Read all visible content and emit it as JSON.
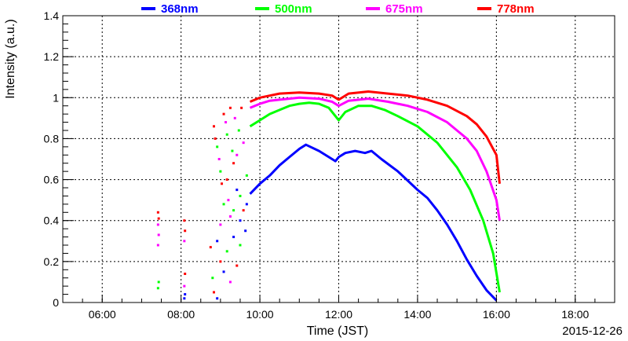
{
  "chart_data": {
    "type": "scatter",
    "xlabel": "Time (JST)",
    "ylabel": "Intensity (a.u.)",
    "date": "2015-12-26",
    "xlim": [
      "05:00",
      "19:00"
    ],
    "ylim": [
      0,
      1.4
    ],
    "grid": true,
    "legend_position": "top",
    "x_ticks": [
      "06:00",
      "08:00",
      "10:00",
      "12:00",
      "14:00",
      "16:00",
      "18:00"
    ],
    "y_ticks": [
      "0",
      "0.2",
      "0.4",
      "0.6",
      "0.8",
      "1",
      "1.2",
      "1.4"
    ],
    "series": [
      {
        "name": "368nm",
        "color": "#0000ff",
        "curve": [
          [
            "09:45",
            0.53
          ],
          [
            "10:00",
            0.58
          ],
          [
            "10:15",
            0.62
          ],
          [
            "10:30",
            0.67
          ],
          [
            "10:45",
            0.71
          ],
          [
            "11:00",
            0.75
          ],
          [
            "11:10",
            0.77
          ],
          [
            "11:30",
            0.74
          ],
          [
            "11:45",
            0.71
          ],
          [
            "11:55",
            0.69
          ],
          [
            "12:00",
            0.71
          ],
          [
            "12:10",
            0.73
          ],
          [
            "12:25",
            0.74
          ],
          [
            "12:40",
            0.73
          ],
          [
            "12:50",
            0.74
          ],
          [
            "13:05",
            0.7
          ],
          [
            "13:30",
            0.64
          ],
          [
            "14:00",
            0.55
          ],
          [
            "14:15",
            0.51
          ],
          [
            "14:30",
            0.45
          ],
          [
            "14:45",
            0.38
          ],
          [
            "15:00",
            0.3
          ],
          [
            "15:15",
            0.21
          ],
          [
            "15:30",
            0.13
          ],
          [
            "15:45",
            0.06
          ],
          [
            "16:00",
            0.01
          ]
        ]
      },
      {
        "name": "500nm",
        "color": "#00ff00",
        "curve": [
          [
            "09:45",
            0.86
          ],
          [
            "10:00",
            0.89
          ],
          [
            "10:15",
            0.92
          ],
          [
            "10:30",
            0.94
          ],
          [
            "10:45",
            0.96
          ],
          [
            "11:00",
            0.97
          ],
          [
            "11:15",
            0.975
          ],
          [
            "11:30",
            0.97
          ],
          [
            "11:45",
            0.95
          ],
          [
            "12:00",
            0.89
          ],
          [
            "12:10",
            0.93
          ],
          [
            "12:30",
            0.96
          ],
          [
            "12:50",
            0.96
          ],
          [
            "13:10",
            0.94
          ],
          [
            "13:30",
            0.91
          ],
          [
            "14:00",
            0.86
          ],
          [
            "14:30",
            0.78
          ],
          [
            "15:00",
            0.66
          ],
          [
            "15:20",
            0.55
          ],
          [
            "15:40",
            0.4
          ],
          [
            "15:55",
            0.24
          ],
          [
            "16:05",
            0.05
          ]
        ]
      },
      {
        "name": "675nm",
        "color": "#ff00ff",
        "curve": [
          [
            "09:45",
            0.95
          ],
          [
            "10:00",
            0.97
          ],
          [
            "10:15",
            0.985
          ],
          [
            "10:30",
            0.99
          ],
          [
            "11:00",
            1.0
          ],
          [
            "11:30",
            0.995
          ],
          [
            "11:50",
            0.98
          ],
          [
            "12:00",
            0.96
          ],
          [
            "12:15",
            0.985
          ],
          [
            "12:45",
            0.995
          ],
          [
            "13:15",
            0.98
          ],
          [
            "13:45",
            0.96
          ],
          [
            "14:15",
            0.93
          ],
          [
            "14:45",
            0.88
          ],
          [
            "15:15",
            0.8
          ],
          [
            "15:30",
            0.74
          ],
          [
            "15:45",
            0.64
          ],
          [
            "16:00",
            0.5
          ],
          [
            "16:05",
            0.4
          ]
        ]
      },
      {
        "name": "778nm",
        "color": "#ff0000",
        "curve": [
          [
            "09:45",
            0.98
          ],
          [
            "10:00",
            1.0
          ],
          [
            "10:15",
            1.01
          ],
          [
            "10:30",
            1.02
          ],
          [
            "11:00",
            1.025
          ],
          [
            "11:30",
            1.02
          ],
          [
            "11:50",
            1.01
          ],
          [
            "12:00",
            0.99
          ],
          [
            "12:15",
            1.02
          ],
          [
            "12:45",
            1.03
          ],
          [
            "13:15",
            1.02
          ],
          [
            "13:45",
            1.01
          ],
          [
            "14:15",
            0.99
          ],
          [
            "14:45",
            0.96
          ],
          [
            "15:15",
            0.91
          ],
          [
            "15:30",
            0.87
          ],
          [
            "15:45",
            0.81
          ],
          [
            "16:00",
            0.72
          ],
          [
            "16:05",
            0.58
          ]
        ]
      }
    ],
    "scattered_points": [
      [
        "07:25",
        0.44,
        "#ff0000"
      ],
      [
        "07:26",
        0.41,
        "#ff0000"
      ],
      [
        "07:25",
        0.38,
        "#ff00ff"
      ],
      [
        "07:26",
        0.33,
        "#ff00ff"
      ],
      [
        "07:25",
        0.28,
        "#ff00ff"
      ],
      [
        "07:26",
        0.1,
        "#00ff00"
      ],
      [
        "07:25",
        0.07,
        "#00ff00"
      ],
      [
        "08:05",
        0.4,
        "#ff0000"
      ],
      [
        "08:06",
        0.35,
        "#ff0000"
      ],
      [
        "08:05",
        0.3,
        "#ff00ff"
      ],
      [
        "08:06",
        0.14,
        "#ff0000"
      ],
      [
        "08:05",
        0.08,
        "#ff00ff"
      ],
      [
        "08:06",
        0.04,
        "#0000ff"
      ],
      [
        "08:05",
        0.02,
        "#0000ff"
      ],
      [
        "08:50",
        0.86,
        "#ff0000"
      ],
      [
        "08:52",
        0.8,
        "#ff0000"
      ],
      [
        "08:55",
        0.76,
        "#00ff00"
      ],
      [
        "08:58",
        0.7,
        "#ff00ff"
      ],
      [
        "09:00",
        0.64,
        "#00ff00"
      ],
      [
        "09:02",
        0.58,
        "#ff0000"
      ],
      [
        "09:05",
        0.92,
        "#ff0000"
      ],
      [
        "09:08",
        0.88,
        "#ff00ff"
      ],
      [
        "09:10",
        0.82,
        "#00ff00"
      ],
      [
        "09:12",
        0.5,
        "#ff00ff"
      ],
      [
        "09:15",
        0.95,
        "#ff0000"
      ],
      [
        "09:18",
        0.74,
        "#00ff00"
      ],
      [
        "09:20",
        0.45,
        "#00ff00"
      ],
      [
        "09:22",
        0.9,
        "#ff00ff"
      ],
      [
        "09:25",
        0.55,
        "#0000ff"
      ],
      [
        "09:28",
        0.84,
        "#00ff00"
      ],
      [
        "09:30",
        0.4,
        "#0000ff"
      ],
      [
        "09:32",
        0.95,
        "#ff0000"
      ],
      [
        "09:35",
        0.78,
        "#ff00ff"
      ],
      [
        "09:38",
        0.35,
        "#0000ff"
      ],
      [
        "09:40",
        0.62,
        "#00ff00"
      ],
      [
        "08:55",
        0.3,
        "#0000ff"
      ],
      [
        "09:00",
        0.2,
        "#ff0000"
      ],
      [
        "09:05",
        0.15,
        "#0000ff"
      ],
      [
        "09:10",
        0.25,
        "#00ff00"
      ],
      [
        "09:15",
        0.1,
        "#ff00ff"
      ],
      [
        "09:20",
        0.32,
        "#0000ff"
      ],
      [
        "09:25",
        0.18,
        "#ff0000"
      ],
      [
        "09:30",
        0.28,
        "#00ff00"
      ],
      [
        "08:50",
        0.05,
        "#ff0000"
      ],
      [
        "08:55",
        0.02,
        "#0000ff"
      ],
      [
        "09:00",
        0.38,
        "#ff00ff"
      ],
      [
        "09:05",
        0.48,
        "#00ff00"
      ],
      [
        "09:10",
        0.6,
        "#ff0000"
      ],
      [
        "09:15",
        0.42,
        "#ff00ff"
      ],
      [
        "09:20",
        0.68,
        "#ff0000"
      ],
      [
        "09:25",
        0.72,
        "#ff00ff"
      ],
      [
        "09:30",
        0.52,
        "#00ff00"
      ],
      [
        "09:35",
        0.45,
        "#ff0000"
      ],
      [
        "09:40",
        0.48,
        "#0000ff"
      ],
      [
        "08:45",
        0.27,
        "#ff0000"
      ],
      [
        "08:48",
        0.12,
        "#00ff00"
      ]
    ]
  }
}
